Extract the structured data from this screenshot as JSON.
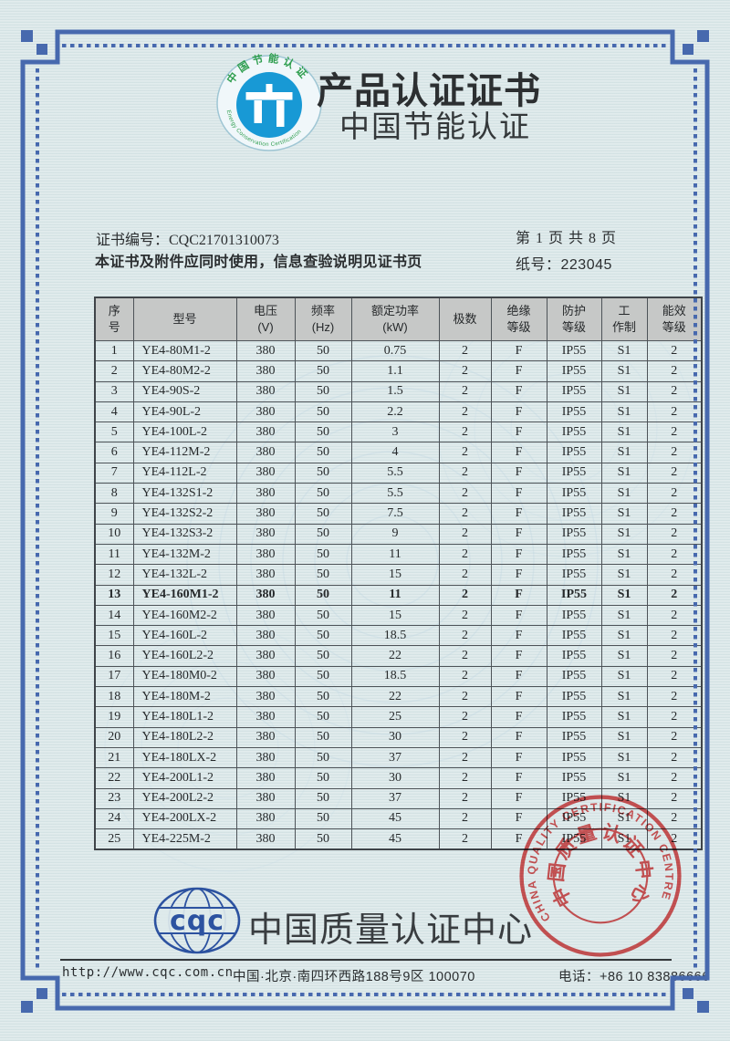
{
  "colors": {
    "border_blue": "#4769ae",
    "stamp_red": "#dd4446",
    "cqc_blue": "#2c52a0",
    "energy_blue": "#1899d5",
    "energy_green": "#2f9e4f",
    "table_header_bg": "#c6c8c7",
    "paper": "#dde9ea"
  },
  "header": {
    "title": "产品认证证书",
    "subtitle": "中国节能认证",
    "logo": {
      "arc_top": "中国节能认证",
      "arc_bottom": "Energy Conservation Certification"
    }
  },
  "cert_info": {
    "cert_no_line": "证书编号：CQC21701310073",
    "page_info": "第 1 页  共 8 页",
    "usage_note": "本证书及附件应同时使用，信息查验说明见证书页",
    "paper_no_line": "纸号：223045"
  },
  "table": {
    "columns": [
      {
        "l1": "序",
        "l2": "号"
      },
      {
        "l1": "型号",
        "l2": ""
      },
      {
        "l1": "电压",
        "l2": "(V)"
      },
      {
        "l1": "频率",
        "l2": "(Hz)"
      },
      {
        "l1": "额定功率",
        "l2": "(kW)"
      },
      {
        "l1": "极数",
        "l2": ""
      },
      {
        "l1": "绝缘",
        "l2": "等级"
      },
      {
        "l1": "防护",
        "l2": "等级"
      },
      {
        "l1": "工",
        "l2": "作制"
      },
      {
        "l1": "能效",
        "l2": "等级"
      }
    ],
    "bold_row_no": "13",
    "rows": [
      [
        "1",
        "YE4-80M1-2",
        "380",
        "50",
        "0.75",
        "2",
        "F",
        "IP55",
        "S1",
        "2"
      ],
      [
        "2",
        "YE4-80M2-2",
        "380",
        "50",
        "1.1",
        "2",
        "F",
        "IP55",
        "S1",
        "2"
      ],
      [
        "3",
        "YE4-90S-2",
        "380",
        "50",
        "1.5",
        "2",
        "F",
        "IP55",
        "S1",
        "2"
      ],
      [
        "4",
        "YE4-90L-2",
        "380",
        "50",
        "2.2",
        "2",
        "F",
        "IP55",
        "S1",
        "2"
      ],
      [
        "5",
        "YE4-100L-2",
        "380",
        "50",
        "3",
        "2",
        "F",
        "IP55",
        "S1",
        "2"
      ],
      [
        "6",
        "YE4-112M-2",
        "380",
        "50",
        "4",
        "2",
        "F",
        "IP55",
        "S1",
        "2"
      ],
      [
        "7",
        "YE4-112L-2",
        "380",
        "50",
        "5.5",
        "2",
        "F",
        "IP55",
        "S1",
        "2"
      ],
      [
        "8",
        "YE4-132S1-2",
        "380",
        "50",
        "5.5",
        "2",
        "F",
        "IP55",
        "S1",
        "2"
      ],
      [
        "9",
        "YE4-132S2-2",
        "380",
        "50",
        "7.5",
        "2",
        "F",
        "IP55",
        "S1",
        "2"
      ],
      [
        "10",
        "YE4-132S3-2",
        "380",
        "50",
        "9",
        "2",
        "F",
        "IP55",
        "S1",
        "2"
      ],
      [
        "11",
        "YE4-132M-2",
        "380",
        "50",
        "11",
        "2",
        "F",
        "IP55",
        "S1",
        "2"
      ],
      [
        "12",
        "YE4-132L-2",
        "380",
        "50",
        "15",
        "2",
        "F",
        "IP55",
        "S1",
        "2"
      ],
      [
        "13",
        "YE4-160M1-2",
        "380",
        "50",
        "11",
        "2",
        "F",
        "IP55",
        "S1",
        "2"
      ],
      [
        "14",
        "YE4-160M2-2",
        "380",
        "50",
        "15",
        "2",
        "F",
        "IP55",
        "S1",
        "2"
      ],
      [
        "15",
        "YE4-160L-2",
        "380",
        "50",
        "18.5",
        "2",
        "F",
        "IP55",
        "S1",
        "2"
      ],
      [
        "16",
        "YE4-160L2-2",
        "380",
        "50",
        "22",
        "2",
        "F",
        "IP55",
        "S1",
        "2"
      ],
      [
        "17",
        "YE4-180M0-2",
        "380",
        "50",
        "18.5",
        "2",
        "F",
        "IP55",
        "S1",
        "2"
      ],
      [
        "18",
        "YE4-180M-2",
        "380",
        "50",
        "22",
        "2",
        "F",
        "IP55",
        "S1",
        "2"
      ],
      [
        "19",
        "YE4-180L1-2",
        "380",
        "50",
        "25",
        "2",
        "F",
        "IP55",
        "S1",
        "2"
      ],
      [
        "20",
        "YE4-180L2-2",
        "380",
        "50",
        "30",
        "2",
        "F",
        "IP55",
        "S1",
        "2"
      ],
      [
        "21",
        "YE4-180LX-2",
        "380",
        "50",
        "37",
        "2",
        "F",
        "IP55",
        "S1",
        "2"
      ],
      [
        "22",
        "YE4-200L1-2",
        "380",
        "50",
        "30",
        "2",
        "F",
        "IP55",
        "S1",
        "2"
      ],
      [
        "23",
        "YE4-200L2-2",
        "380",
        "50",
        "37",
        "2",
        "F",
        "IP55",
        "S1",
        "2"
      ],
      [
        "24",
        "YE4-200LX-2",
        "380",
        "50",
        "45",
        "2",
        "F",
        "IP55",
        "S1",
        "2"
      ],
      [
        "25",
        "YE4-225M-2",
        "380",
        "50",
        "45",
        "2",
        "F",
        "IP55",
        "S1",
        "2"
      ]
    ]
  },
  "stamp": {
    "english_arc": "CHINA QUALITY CERTIFICATION CENTRE",
    "chinese_arc": "中国质量认证中心"
  },
  "footer": {
    "cqc_logo_text": "cqc",
    "org_name": "中国质量认证中心",
    "website": "http://www.cqc.com.cn",
    "address": "中国·北京·南四环西路188号9区  100070",
    "phone": "电话：+86 10 83886666"
  }
}
